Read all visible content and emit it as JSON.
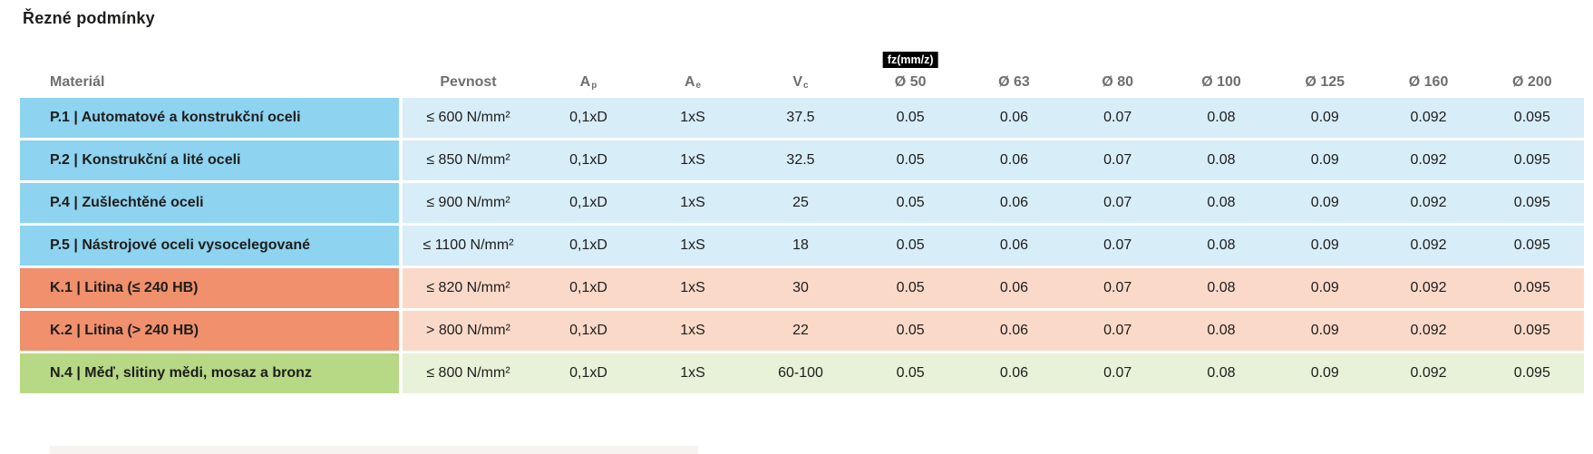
{
  "page": {
    "title": "Řezné podmínky"
  },
  "table": {
    "header": {
      "material": "Materiál",
      "pevnost": "Pevnost",
      "ap": {
        "base": "A",
        "sub": "p"
      },
      "ae": {
        "base": "A",
        "sub": "e"
      },
      "vc": {
        "base": "V",
        "sub": "c"
      },
      "fz_badge": "fz(mm/z)",
      "diameters": [
        "Ø 50",
        "Ø 63",
        "Ø 80",
        "Ø 100",
        "Ø 125",
        "Ø 160",
        "Ø 200"
      ]
    },
    "rows": [
      {
        "theme": "blue",
        "material": "P.1 | Automatové a konstrukční oceli",
        "pevnost": "≤ 600 N/mm²",
        "ap": "0,1xD",
        "ae": "1xS",
        "vc": "37.5",
        "fz": [
          "0.05",
          "0.06",
          "0.07",
          "0.08",
          "0.09",
          "0.092",
          "0.095"
        ]
      },
      {
        "theme": "blue",
        "material": "P.2 | Konstrukční a lité oceli",
        "pevnost": "≤ 850 N/mm²",
        "ap": "0,1xD",
        "ae": "1xS",
        "vc": "32.5",
        "fz": [
          "0.05",
          "0.06",
          "0.07",
          "0.08",
          "0.09",
          "0.092",
          "0.095"
        ]
      },
      {
        "theme": "blue",
        "material": "P.4 | Zušlechtěné oceli",
        "pevnost": "≤ 900 N/mm²",
        "ap": "0,1xD",
        "ae": "1xS",
        "vc": "25",
        "fz": [
          "0.05",
          "0.06",
          "0.07",
          "0.08",
          "0.09",
          "0.092",
          "0.095"
        ]
      },
      {
        "theme": "blue",
        "material": "P.5 | Nástrojové oceli vysocelegované",
        "pevnost": "≤ 1100 N/mm²",
        "ap": "0,1xD",
        "ae": "1xS",
        "vc": "18",
        "fz": [
          "0.05",
          "0.06",
          "0.07",
          "0.08",
          "0.09",
          "0.092",
          "0.095"
        ]
      },
      {
        "theme": "orange",
        "material": "K.1 | Litina (≤ 240 HB)",
        "pevnost": "≤ 820 N/mm²",
        "ap": "0,1xD",
        "ae": "1xS",
        "vc": "30",
        "fz": [
          "0.05",
          "0.06",
          "0.07",
          "0.08",
          "0.09",
          "0.092",
          "0.095"
        ]
      },
      {
        "theme": "orange",
        "material": "K.2 | Litina (> 240 HB)",
        "pevnost": "> 800 N/mm²",
        "ap": "0,1xD",
        "ae": "1xS",
        "vc": "22",
        "fz": [
          "0.05",
          "0.06",
          "0.07",
          "0.08",
          "0.09",
          "0.092",
          "0.095"
        ]
      },
      {
        "theme": "green",
        "material": "N.4 | Měď, slitiny mědi, mosaz a bronz",
        "pevnost": "≤ 800 N/mm²",
        "ap": "0,1xD",
        "ae": "1xS",
        "vc": "60-100",
        "fz": [
          "0.05",
          "0.06",
          "0.07",
          "0.08",
          "0.09",
          "0.092",
          "0.095"
        ]
      }
    ]
  },
  "colors": {
    "title_text": "#1d1d1b",
    "header_text": "#706f6f",
    "cell_text": "#1d1d1b",
    "badge_bg": "#000000",
    "badge_text": "#ffffff",
    "partial_row_bg": "#f6f3f0",
    "themes": {
      "blue": {
        "label": "#8ed3ef",
        "body": "#d7edf8"
      },
      "orange": {
        "label": "#f0906c",
        "body": "#fbd9c9"
      },
      "green": {
        "label": "#b7d884",
        "body": "#e8f2d8"
      }
    }
  }
}
